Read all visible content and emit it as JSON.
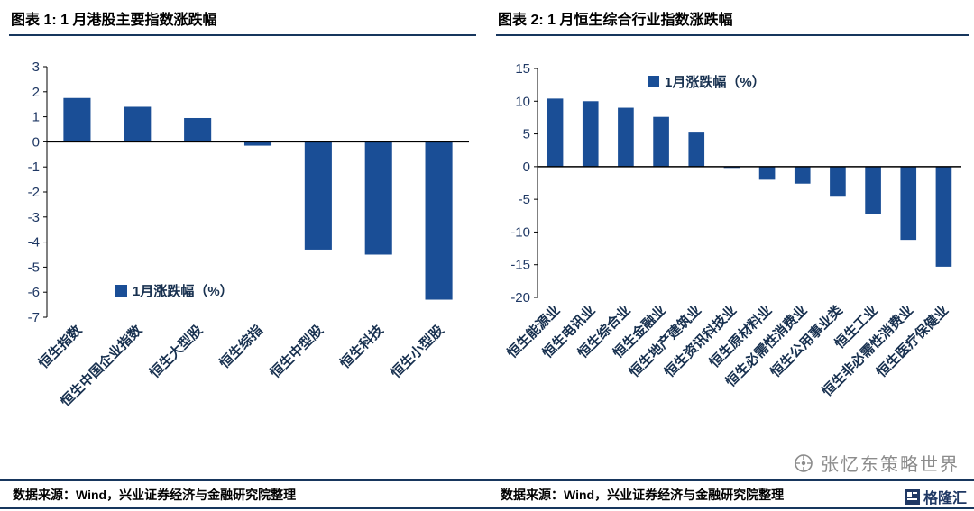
{
  "colors": {
    "bar": "#1A4E96",
    "axis_line": "#000000",
    "tick_text": "#1F3864",
    "category_text": "#17304F",
    "title_underline": "#17365D"
  },
  "chart_data": [
    {
      "type": "bar",
      "title": "图表 1: 1 月港股主要指数涨跌幅",
      "legend": "1月涨跌幅（%）",
      "categories": [
        "恒生指数",
        "恒生中国企业指数",
        "恒生大型股",
        "恒生综指",
        "恒生中型股",
        "恒生科技",
        "恒生小型股"
      ],
      "values": [
        1.75,
        1.4,
        0.95,
        -0.15,
        -4.3,
        -4.5,
        -6.3
      ],
      "ylim": [
        -7,
        3
      ],
      "ytick_step": 1,
      "grid": false,
      "legend_position": "inside-bottom-left",
      "source": "数据来源：Wind，兴业证券经济与金融研究院整理"
    },
    {
      "type": "bar",
      "title": "图表 2: 1 月恒生综合行业指数涨跌幅",
      "legend": "1月涨跌幅（%）",
      "categories": [
        "恒生能源业",
        "恒生电讯业",
        "恒生综合业",
        "恒生金融业",
        "恒生地产建筑业",
        "恒生资讯科技业",
        "恒生原材料业",
        "恒生必需性消费业",
        "恒生公用事业类",
        "恒生工业",
        "恒生非必需性消费业",
        "恒生医疗保健业"
      ],
      "values": [
        10.4,
        10.0,
        9.0,
        7.6,
        5.2,
        -0.2,
        -2.0,
        -2.6,
        -4.6,
        -7.2,
        -11.2,
        -15.3
      ],
      "ylim": [
        -20,
        15
      ],
      "ytick_step": 5,
      "grid": false,
      "legend_position": "inside-top-center",
      "source": "数据来源：Wind，兴业证券经济与金融研究院整理"
    }
  ],
  "watermark": {
    "brand_text": "张忆东策略世界",
    "logo_text": "格隆汇"
  }
}
